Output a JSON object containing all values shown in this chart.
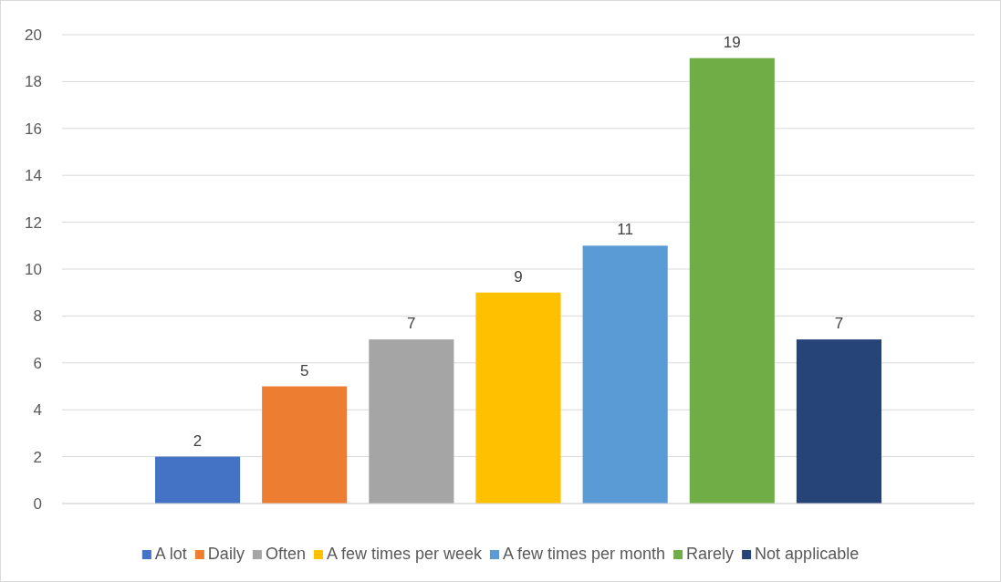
{
  "chart_data": {
    "type": "bar",
    "categories": [
      null
    ],
    "series": [
      {
        "name": "A lot",
        "color": "#4472c4",
        "values": [
          2
        ]
      },
      {
        "name": "Daily",
        "color": "#ed7d31",
        "values": [
          5
        ]
      },
      {
        "name": "Often",
        "color": "#a5a5a5",
        "values": [
          7
        ]
      },
      {
        "name": "A few times per week",
        "color": "#ffc000",
        "values": [
          9
        ]
      },
      {
        "name": "A few times per month",
        "color": "#5b9bd5",
        "values": [
          11
        ]
      },
      {
        "name": "Rarely",
        "color": "#70ad47",
        "values": [
          19
        ]
      },
      {
        "name": "Not applicable",
        "color": "#264478",
        "values": [
          7
        ]
      }
    ],
    "ylim": [
      0,
      20
    ],
    "yticks": [
      0,
      2,
      4,
      6,
      8,
      10,
      12,
      14,
      16,
      18,
      20
    ],
    "grid": "y",
    "legend": "bottom",
    "data_labels": true
  }
}
